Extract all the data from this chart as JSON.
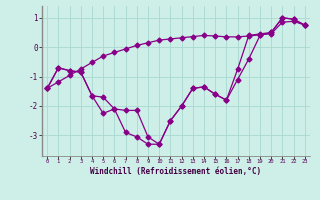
{
  "xlabel": "Windchill (Refroidissement éolien,°C)",
  "x_data": [
    0,
    1,
    2,
    3,
    4,
    5,
    6,
    7,
    8,
    9,
    10,
    11,
    12,
    13,
    14,
    15,
    16,
    17,
    18,
    19,
    20,
    21,
    22,
    23
  ],
  "line1_y": [
    -1.4,
    -0.7,
    -0.8,
    -0.85,
    -1.65,
    -2.25,
    -2.1,
    -2.15,
    -2.15,
    -3.05,
    -3.3,
    -2.5,
    -2.0,
    -1.4,
    -1.35,
    -1.6,
    -1.8,
    -0.75,
    0.4,
    0.45,
    0.5,
    1.0,
    0.95,
    0.75
  ],
  "line2_y": [
    -1.4,
    -0.7,
    -0.8,
    -0.85,
    -1.65,
    -1.7,
    -2.1,
    -2.9,
    -3.05,
    -3.3,
    -3.3,
    -2.5,
    -2.0,
    -1.4,
    -1.35,
    -1.6,
    -1.8,
    -1.1,
    -0.4,
    0.4,
    0.5,
    1.0,
    0.95,
    0.75
  ],
  "line3_y": [
    -1.4,
    -1.18,
    -0.96,
    -0.74,
    -0.52,
    -0.3,
    -0.18,
    -0.06,
    0.06,
    0.15,
    0.24,
    0.28,
    0.32,
    0.36,
    0.4,
    0.38,
    0.35,
    0.35,
    0.38,
    0.42,
    0.46,
    0.85,
    0.88,
    0.75
  ],
  "bg_color": "#ceeee8",
  "grid_color": "#a8d8d0",
  "line_color": "#880088",
  "spine_color": "#888888",
  "ylim": [
    -3.7,
    1.4
  ],
  "xlim": [
    -0.5,
    23.5
  ],
  "yticks": [
    -3,
    -2,
    -1,
    0,
    1
  ]
}
